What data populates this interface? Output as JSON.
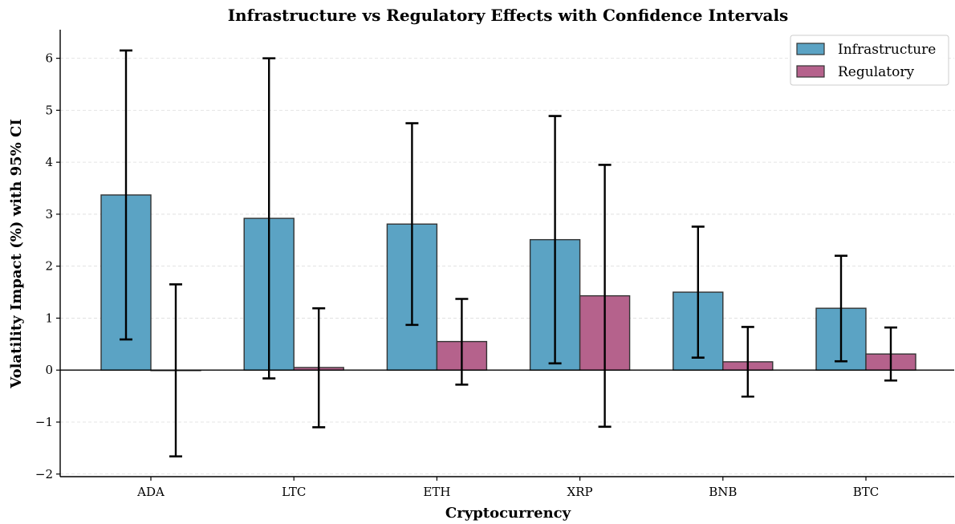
{
  "chart_data": {
    "type": "bar",
    "title": "Infrastructure vs Regulatory Effects with Confidence Intervals",
    "xlabel": "Cryptocurrency",
    "ylabel": "Volatility Impact (%) with 95% CI",
    "categories": [
      "ADA",
      "LTC",
      "ETH",
      "XRP",
      "BNB",
      "BTC"
    ],
    "series": [
      {
        "name": "Infrastructure",
        "color": "#5ba3c4",
        "values": [
          3.37,
          2.92,
          2.81,
          2.51,
          1.5,
          1.19
        ],
        "ci_low": [
          0.59,
          -0.16,
          0.87,
          0.13,
          0.24,
          0.17
        ],
        "ci_high": [
          6.15,
          6.0,
          4.75,
          4.89,
          2.76,
          2.2
        ]
      },
      {
        "name": "Regulatory",
        "color": "#b5628c",
        "values": [
          0.0,
          0.05,
          0.55,
          1.43,
          0.16,
          0.31
        ],
        "ci_low": [
          -1.66,
          -1.1,
          -0.28,
          -1.09,
          -0.51,
          -0.2
        ],
        "ci_high": [
          1.65,
          1.19,
          1.37,
          3.95,
          0.83,
          0.82
        ]
      }
    ],
    "ylim": [
      -2.05,
      6.55
    ],
    "yticks": [
      -2,
      -1,
      0,
      1,
      2,
      3,
      4,
      5,
      6
    ],
    "ytick_labels": [
      "−2",
      "−1",
      "0",
      "1",
      "2",
      "3",
      "4",
      "5",
      "6"
    ],
    "grid": true,
    "legend": "top-right"
  }
}
